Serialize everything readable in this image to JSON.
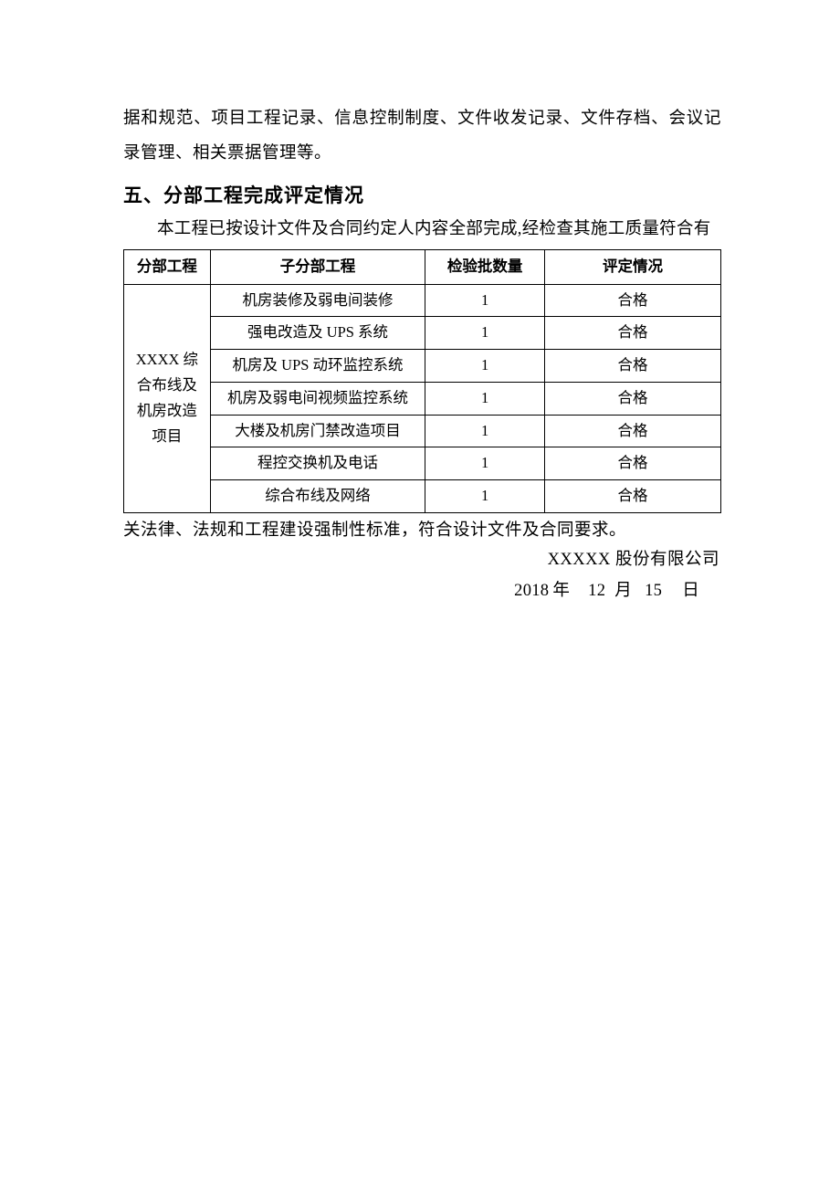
{
  "intro_paragraph": "据和规范、项目工程记录、信息控制制度、文件收发记录、文件存档、会议记录管理、相关票据管理等。",
  "section5": {
    "heading": "五、分部工程完成评定情况",
    "intro": "本工程已按设计文件及合同约定人内容全部完成,经检查其施工质量符合有",
    "table": {
      "headers": [
        "分部工程",
        "子分部工程",
        "检验批数量",
        "评定情况"
      ],
      "division_name": "XXXX 综合布线及机房改造项目",
      "rows": [
        {
          "sub": "机房装修及弱电间装修",
          "batch": "1",
          "result": "合格"
        },
        {
          "sub": "强电改造及 UPS 系统",
          "batch": "1",
          "result": "合格"
        },
        {
          "sub": "机房及 UPS 动环监控系统",
          "batch": "1",
          "result": "合格"
        },
        {
          "sub": "机房及弱电间视频监控系统",
          "batch": "1",
          "result": "合格"
        },
        {
          "sub": "大楼及机房门禁改造项目",
          "batch": "1",
          "result": "合格"
        },
        {
          "sub": "程控交换机及电话",
          "batch": "1",
          "result": "合格"
        },
        {
          "sub": "综合布线及网络",
          "batch": "1",
          "result": "合格"
        }
      ]
    },
    "closing": "关法律、法规和工程建设强制性标准，符合设计文件及合同要求。",
    "company": "XXXXX 股份有限公司",
    "date": {
      "year": "2018",
      "year_label": "年",
      "month": "12",
      "month_label": "月",
      "day": "15",
      "day_label": "日"
    }
  },
  "style": {
    "text_color": "#000000",
    "border_color": "#000000",
    "background_color": "#ffffff",
    "body_fontsize": 18.5,
    "heading_fontsize": 21,
    "table_fontsize": 16.5,
    "column_widths_pct": [
      14.5,
      36,
      20,
      29.5
    ]
  }
}
